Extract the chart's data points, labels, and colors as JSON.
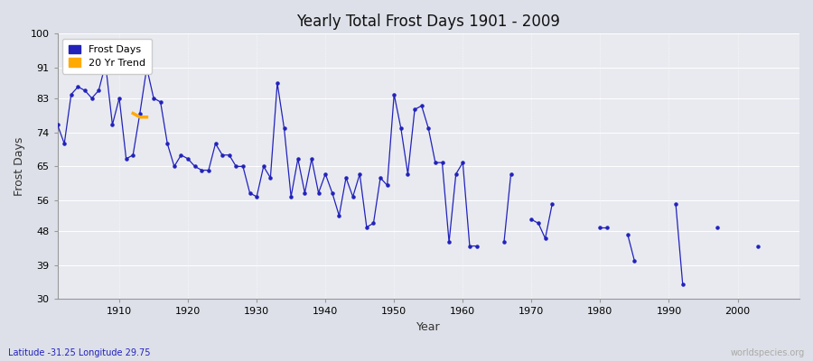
{
  "title": "Yearly Total Frost Days 1901 - 2009",
  "xlabel": "Year",
  "ylabel": "Frost Days",
  "subtitle": "Latitude -31.25 Longitude 29.75",
  "watermark": "worldspecies.org",
  "ylim": [
    30,
    100
  ],
  "yticks": [
    30,
    39,
    48,
    56,
    65,
    74,
    83,
    91,
    100
  ],
  "background_color": "#dde0e8",
  "plot_bg_color": "#e8eaf0",
  "line_color": "#2222bb",
  "trend_color": "#ffaa00",
  "figsize": [
    9.0,
    4.0
  ],
  "dpi": 100,
  "frost_days": {
    "1901": 76,
    "1902": 71,
    "1903": 84,
    "1904": 86,
    "1905": 85,
    "1906": 83,
    "1907": 85,
    "1908": 92,
    "1909": 76,
    "1910": 83,
    "1911": 67,
    "1912": 68,
    "1913": 79,
    "1914": 91,
    "1915": 83,
    "1916": 82,
    "1917": 71,
    "1918": 65,
    "1919": 68,
    "1920": 67,
    "1921": 65,
    "1922": 64,
    "1923": 64,
    "1924": 71,
    "1925": 68,
    "1926": 68,
    "1927": 65,
    "1928": 65,
    "1929": 58,
    "1930": 57,
    "1931": 65,
    "1932": 62,
    "1933": 87,
    "1934": 75,
    "1935": 57,
    "1936": 67,
    "1937": 58,
    "1938": 67,
    "1939": 58,
    "1940": 63,
    "1941": 58,
    "1942": 52,
    "1943": 62,
    "1944": 57,
    "1945": 63,
    "1946": 49,
    "1947": 50,
    "1948": 62,
    "1949": 60,
    "1950": 84,
    "1951": 75,
    "1952": 63,
    "1953": 80,
    "1954": 81,
    "1955": 75,
    "1956": 66,
    "1957": 66,
    "1958": 45,
    "1959": 63,
    "1960": 66,
    "1961": 44,
    "1962": 44,
    "1966": 45,
    "1967": 63,
    "1970": 51,
    "1971": 50,
    "1972": 46,
    "1973": 55,
    "1980": 49,
    "1981": 49,
    "1984": 47,
    "1985": 40,
    "1991": 55,
    "1992": 34,
    "1997": 49,
    "2003": 44
  },
  "trend_data": [
    [
      1912,
      79
    ],
    [
      1913,
      78
    ],
    [
      1914,
      78
    ]
  ],
  "xlim": [
    1901,
    2009
  ],
  "xticks": [
    1910,
    1920,
    1930,
    1940,
    1950,
    1960,
    1970,
    1980,
    1990,
    2000
  ]
}
